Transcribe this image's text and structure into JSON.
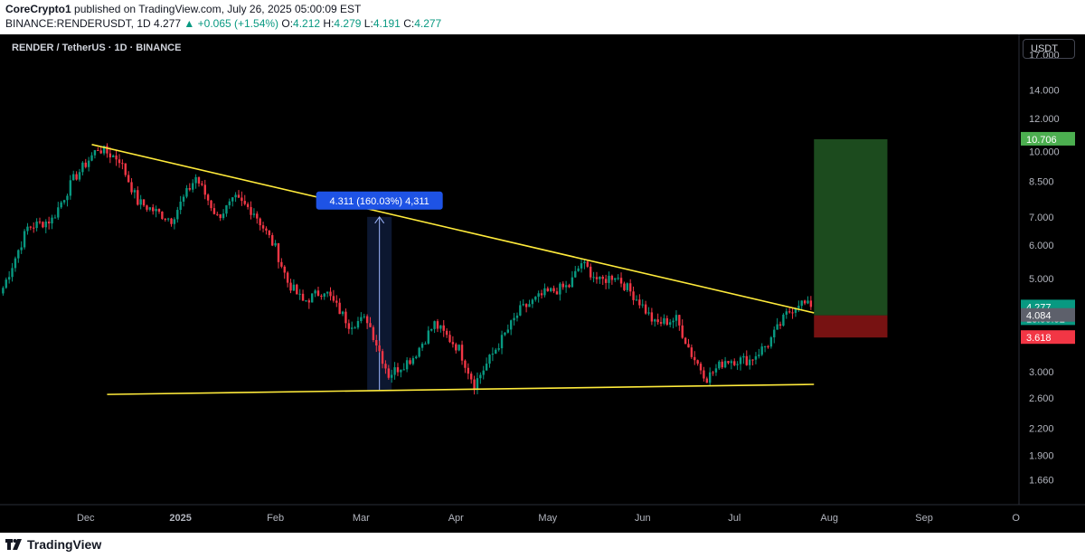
{
  "header": {
    "author": "CoreCrypto1",
    "published": "published on TradingView.com, July 26, 2025 05:00:09 EST",
    "symbol_line_prefix": "BINANCE:RENDERUSDT, 1D",
    "last_price": "4.277",
    "change": "▲ +0.065 (+1.54%)",
    "o_label": "O:",
    "o_value": "4.212",
    "h_label": "H:",
    "h_value": "4.279",
    "l_label": "L:",
    "l_value": "4.191",
    "c_label": "C:",
    "c_value": "4.277"
  },
  "symbol_title": "RENDER / TetherUS · 1D · BINANCE",
  "currency_button": "USDT",
  "footer": {
    "brand": "TradingView"
  },
  "colors": {
    "up": "#089981",
    "down": "#f23645",
    "trendline": "#ffeb3b",
    "target_zone": "#2e7d32",
    "stop_zone": "#b71c1c",
    "measure": "#1e53e5"
  },
  "chart_data": {
    "type": "candlestick",
    "y_scale": "log",
    "ylim": [
      1.45,
      19
    ],
    "y_ticks": [
      "17.000",
      "14.000",
      "12.000",
      "10.000",
      "8.500",
      "7.000",
      "6.000",
      "5.000",
      "3.000",
      "2.600",
      "2.200",
      "1.900",
      "1.660"
    ],
    "x_ticks": [
      "Dec",
      "2025",
      "Feb",
      "Mar",
      "Apr",
      "May",
      "Jun",
      "Jul",
      "Aug",
      "Sep",
      "O"
    ],
    "x_tick_dates": [
      "2024-12-01",
      "2025-01-01",
      "2025-02-01",
      "2025-03-01",
      "2025-04-01",
      "2025-05-01",
      "2025-06-01",
      "2025-07-01",
      "2025-08-01",
      "2025-09-01",
      "2025-10-01"
    ],
    "x_range": [
      "2024-11-03",
      "2025-10-02"
    ],
    "price_labels": [
      {
        "value": "10.706",
        "price": 10.706,
        "color": "#4caf50"
      },
      {
        "value": "4.277",
        "price": 4.277,
        "color": "#089981",
        "countdown": "13:59:52"
      },
      {
        "value": "4.084",
        "price": 4.084,
        "color": "#5d606b"
      },
      {
        "value": "3.618",
        "price": 3.618,
        "color": "#f23645"
      }
    ],
    "candle_anchors": [
      {
        "date": "2024-11-04",
        "close": 4.75
      },
      {
        "date": "2024-11-12",
        "close": 6.6
      },
      {
        "date": "2024-11-20",
        "close": 6.9
      },
      {
        "date": "2024-11-27",
        "close": 8.6
      },
      {
        "date": "2024-12-05",
        "close": 10.2
      },
      {
        "date": "2024-12-12",
        "close": 9.6
      },
      {
        "date": "2024-12-18",
        "close": 7.6
      },
      {
        "date": "2024-12-24",
        "close": 7.2
      },
      {
        "date": "2024-12-29",
        "close": 6.9
      },
      {
        "date": "2025-01-06",
        "close": 8.7
      },
      {
        "date": "2025-01-13",
        "close": 7.0
      },
      {
        "date": "2025-01-19",
        "close": 7.7
      },
      {
        "date": "2025-01-25",
        "close": 7.2
      },
      {
        "date": "2025-02-01",
        "close": 5.9
      },
      {
        "date": "2025-02-05",
        "close": 4.9
      },
      {
        "date": "2025-02-10",
        "close": 4.4
      },
      {
        "date": "2025-02-17",
        "close": 4.7
      },
      {
        "date": "2025-02-25",
        "close": 3.9
      },
      {
        "date": "2025-03-03",
        "close": 4.0
      },
      {
        "date": "2025-03-10",
        "close": 2.95
      },
      {
        "date": "2025-03-18",
        "close": 3.25
      },
      {
        "date": "2025-03-25",
        "close": 3.9
      },
      {
        "date": "2025-04-02",
        "close": 3.4
      },
      {
        "date": "2025-04-07",
        "close": 2.8
      },
      {
        "date": "2025-04-14",
        "close": 3.4
      },
      {
        "date": "2025-04-22",
        "close": 4.2
      },
      {
        "date": "2025-04-30",
        "close": 4.6
      },
      {
        "date": "2025-05-08",
        "close": 4.8
      },
      {
        "date": "2025-05-12",
        "close": 5.45
      },
      {
        "date": "2025-05-18",
        "close": 4.9
      },
      {
        "date": "2025-05-23",
        "close": 5.1
      },
      {
        "date": "2025-05-31",
        "close": 4.4
      },
      {
        "date": "2025-06-05",
        "close": 3.9
      },
      {
        "date": "2025-06-12",
        "close": 4.0
      },
      {
        "date": "2025-06-17",
        "close": 3.3
      },
      {
        "date": "2025-06-22",
        "close": 2.9
      },
      {
        "date": "2025-06-28",
        "close": 3.2
      },
      {
        "date": "2025-07-06",
        "close": 3.2
      },
      {
        "date": "2025-07-12",
        "close": 3.5
      },
      {
        "date": "2025-07-18",
        "close": 4.1
      },
      {
        "date": "2025-07-22",
        "close": 4.4
      },
      {
        "date": "2025-07-26",
        "close": 4.277
      }
    ],
    "trendlines": [
      {
        "name": "descending-resistance",
        "from": {
          "date": "2024-12-03",
          "price": 10.4
        },
        "to": {
          "date": "2025-07-27",
          "price": 4.14
        }
      },
      {
        "name": "horizontal-support",
        "from": {
          "date": "2024-12-08",
          "price": 2.65
        },
        "to": {
          "date": "2025-07-27",
          "price": 2.8
        }
      }
    ],
    "measure": {
      "label": "4.311 (160.03%) 4,311",
      "from_date": "2025-03-03",
      "to_date": "2025-03-11",
      "low": 2.7,
      "high": 7.0
    },
    "position": {
      "from_date": "2025-07-27",
      "to_date": "2025-08-20",
      "entry": 4.084,
      "target": 10.706,
      "stop": 3.618
    }
  }
}
